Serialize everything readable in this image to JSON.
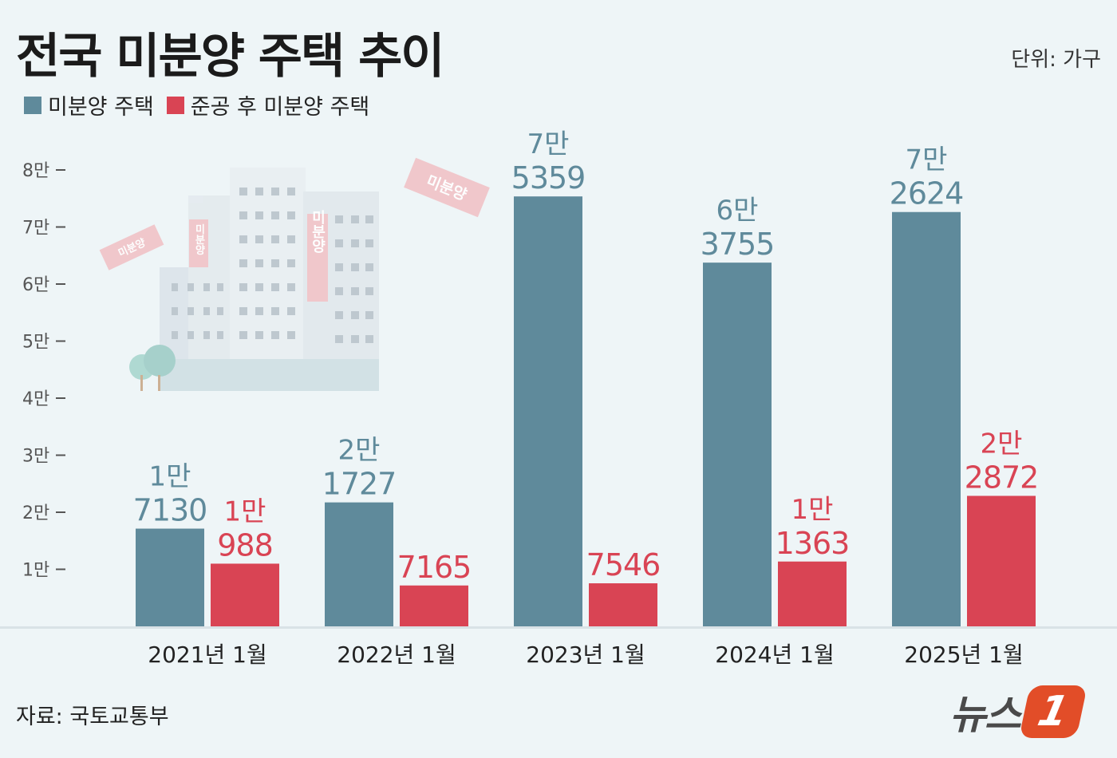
{
  "title": "전국 미분양 주택 추이",
  "unit": "단위: 가구",
  "source": "자료: 국토교통부",
  "logo": {
    "text": "뉴스",
    "mark": "1"
  },
  "colors": {
    "unsold": "#5f8a9b",
    "completed": "#d94454",
    "axis_text": "#555555"
  },
  "illustration": {
    "sign_left": "미분양",
    "sign_tall": "미분양",
    "sign_right": "미분양",
    "flag": "미분양"
  },
  "chart_data": {
    "type": "bar",
    "title": "전국 미분양 주택 추이",
    "categories": [
      "2021년 1월",
      "2022년 1월",
      "2023년 1월",
      "2024년 1월",
      "2025년 1월"
    ],
    "series": [
      {
        "name": "미분양 주택",
        "values": [
          17130,
          21727,
          75359,
          63755,
          72624
        ],
        "labels": [
          [
            "1만",
            "7130"
          ],
          [
            "2만",
            "1727"
          ],
          [
            "7만",
            "5359"
          ],
          [
            "6만",
            "3755"
          ],
          [
            "7만",
            "2624"
          ]
        ]
      },
      {
        "name": "준공 후 미분양 주택",
        "values": [
          10988,
          7165,
          7546,
          11363,
          22872
        ],
        "labels": [
          [
            "1만",
            "988"
          ],
          [
            "",
            "7165"
          ],
          [
            "",
            "7546"
          ],
          [
            "1만",
            "1363"
          ],
          [
            "2만",
            "2872"
          ]
        ]
      }
    ],
    "ylim": [
      0,
      80000
    ],
    "yticks": [
      10000,
      20000,
      30000,
      40000,
      50000,
      60000,
      70000,
      80000
    ],
    "ytick_labels": [
      "1만",
      "2만",
      "3만",
      "4만",
      "5만",
      "6만",
      "7만",
      "8만"
    ],
    "xlabel": "",
    "ylabel": "",
    "unit": "가구"
  }
}
